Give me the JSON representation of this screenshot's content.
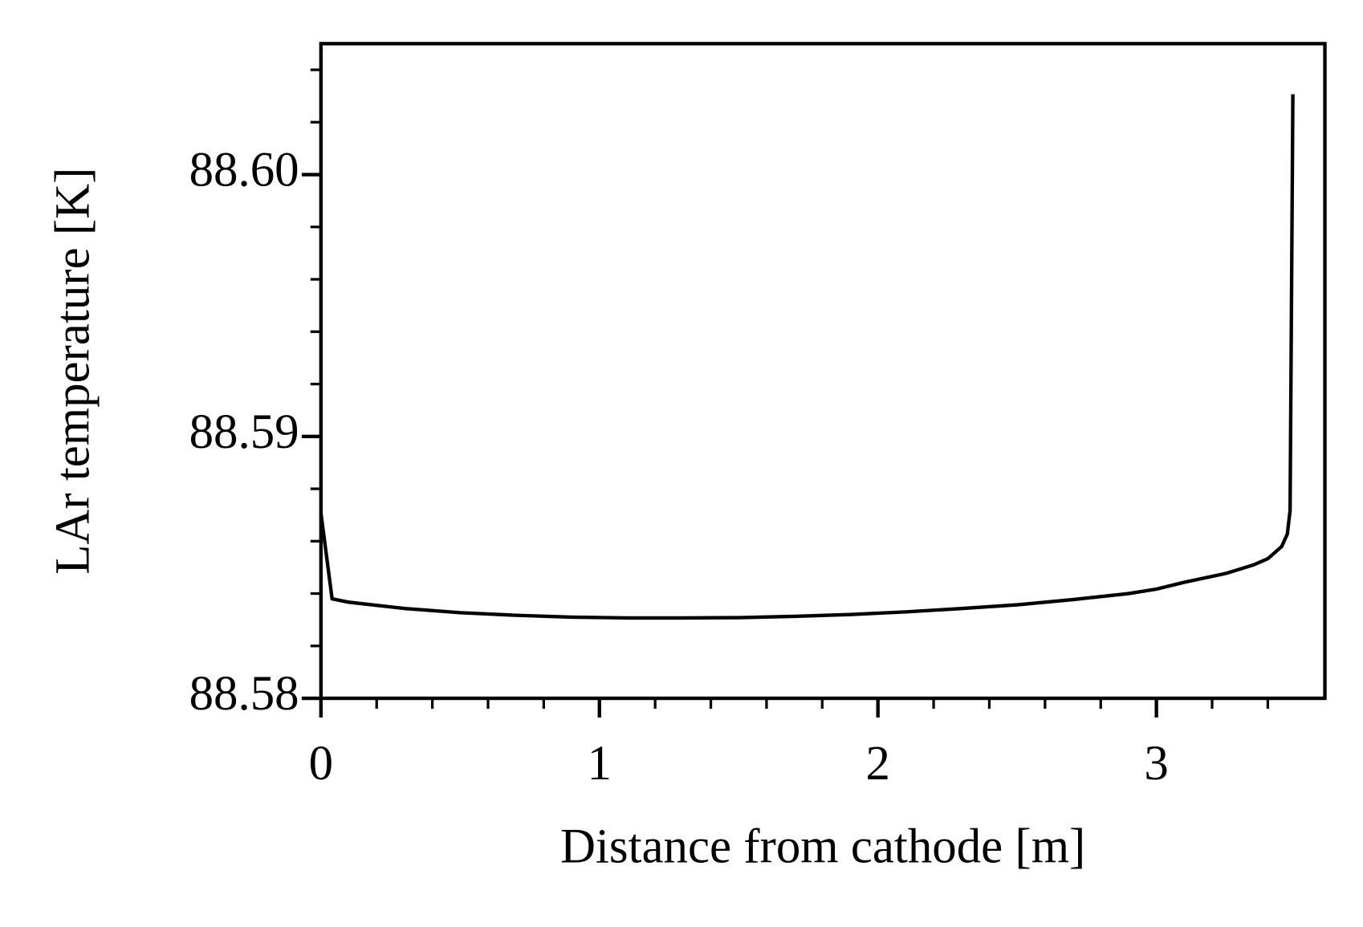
{
  "chart_data": {
    "type": "line",
    "x_label": "Distance from cathode [m]",
    "y_label": "LAr temperature [K]",
    "x": [
      0,
      0.04,
      0.1,
      0.3,
      0.5,
      0.7,
      0.9,
      1.1,
      1.3,
      1.5,
      1.7,
      1.9,
      2.1,
      2.3,
      2.5,
      2.7,
      2.9,
      3.0,
      3.1,
      3.25,
      3.35,
      3.4,
      3.45,
      3.47,
      3.48,
      3.49
    ],
    "series": [
      {
        "color": "#000000",
        "values": [
          88.58707,
          88.5838,
          88.58367,
          88.58343,
          88.58327,
          88.58317,
          88.5831,
          88.58307,
          88.58307,
          88.58308,
          88.58313,
          88.5832,
          88.5833,
          88.58343,
          88.58357,
          88.58377,
          88.584,
          88.58417,
          88.58443,
          88.58477,
          88.5851,
          88.58533,
          88.5858,
          88.58627,
          88.58717,
          88.60307
        ]
      }
    ],
    "xlim": [
      0,
      3.605
    ],
    "ylim": [
      88.58,
      88.605
    ],
    "xticks": [
      0,
      1,
      2,
      3
    ],
    "yticks": [
      {
        "value": 88.58,
        "label": "88.58"
      },
      {
        "value": 88.59,
        "label": "88.59"
      },
      {
        "value": 88.6,
        "label": "88.60"
      }
    ],
    "xminorticks": [
      0.2,
      0.4,
      0.6,
      0.8,
      1.2,
      1.4,
      1.6,
      1.8,
      2.2,
      2.4,
      2.6,
      2.8,
      3.2,
      3.4
    ],
    "yminorticks": [
      88.582,
      88.584,
      88.586,
      88.588,
      88.592,
      88.594,
      88.596,
      88.598,
      88.602,
      88.604
    ],
    "grid": false
  }
}
